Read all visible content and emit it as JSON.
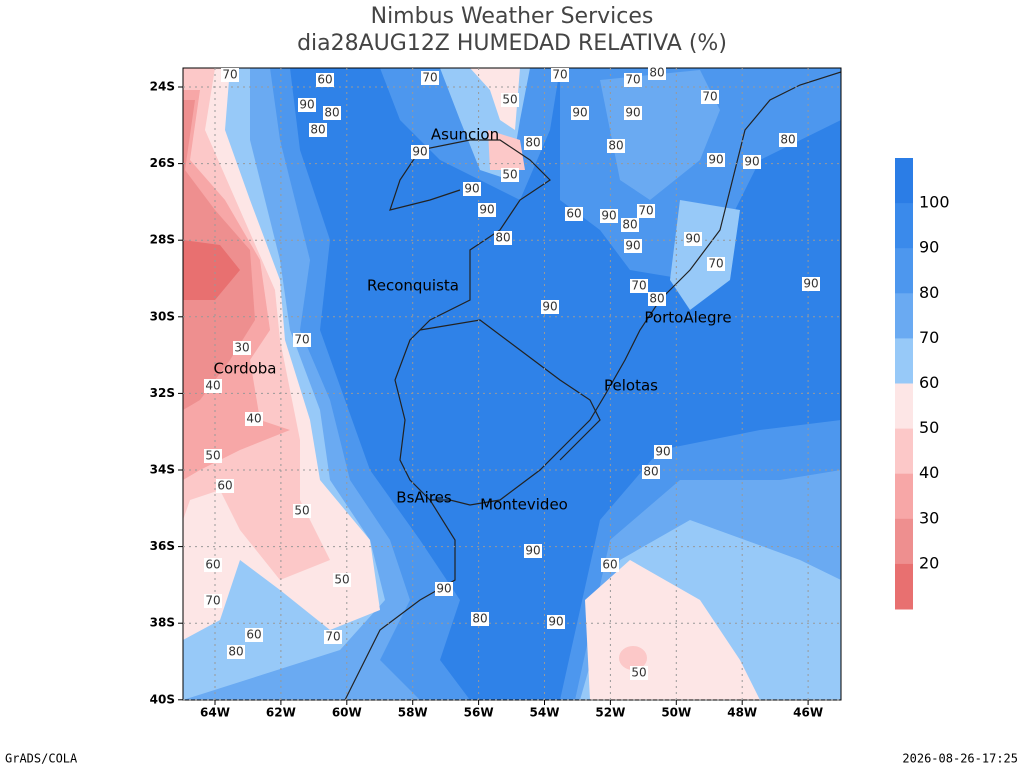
{
  "header": {
    "title": "Nimbus Weather Services",
    "subtitle": "dia28AUG12Z HUMEDAD RELATIVA (%)"
  },
  "map": {
    "lat_labels": [
      "24S",
      "26S",
      "28S",
      "30S",
      "32S",
      "34S",
      "36S",
      "38S",
      "40S"
    ],
    "lon_labels": [
      "64W",
      "62W",
      "60W",
      "58W",
      "56W",
      "54W",
      "52W",
      "50W",
      "48W",
      "46W"
    ],
    "cities": [
      "Asuncion",
      "Reconquista",
      "Cordoba",
      "PortoAlegre",
      "Pelotas",
      "BsAires",
      "Montevideo"
    ],
    "contour_labels": [
      "70",
      "60",
      "90",
      "80",
      "80",
      "70",
      "50",
      "70",
      "90",
      "70",
      "80",
      "70",
      "90",
      "80",
      "90",
      "80",
      "50",
      "90",
      "90",
      "80",
      "60",
      "70",
      "90",
      "80",
      "90",
      "90",
      "90",
      "90",
      "90",
      "70",
      "30",
      "40",
      "40",
      "50",
      "60",
      "50",
      "60",
      "50",
      "70",
      "90",
      "90",
      "80",
      "70",
      "80",
      "60",
      "50",
      "80",
      "70",
      "80",
      "70",
      "60",
      "90",
      "90",
      "80",
      "90"
    ]
  },
  "colorbar": {
    "labels": [
      100,
      90,
      80,
      70,
      60,
      50,
      40,
      30,
      20
    ],
    "colors": [
      "#2b7de6",
      "#3a8aeb",
      "#4d97ee",
      "#6aaaf2",
      "#97c9f8",
      "#fde6e6",
      "#fcc8c8",
      "#f7a7a7",
      "#ee8f8f",
      "#e87070"
    ]
  },
  "footer": {
    "left": "GrADS/COLA",
    "right": "2026-08-26-17:25"
  }
}
